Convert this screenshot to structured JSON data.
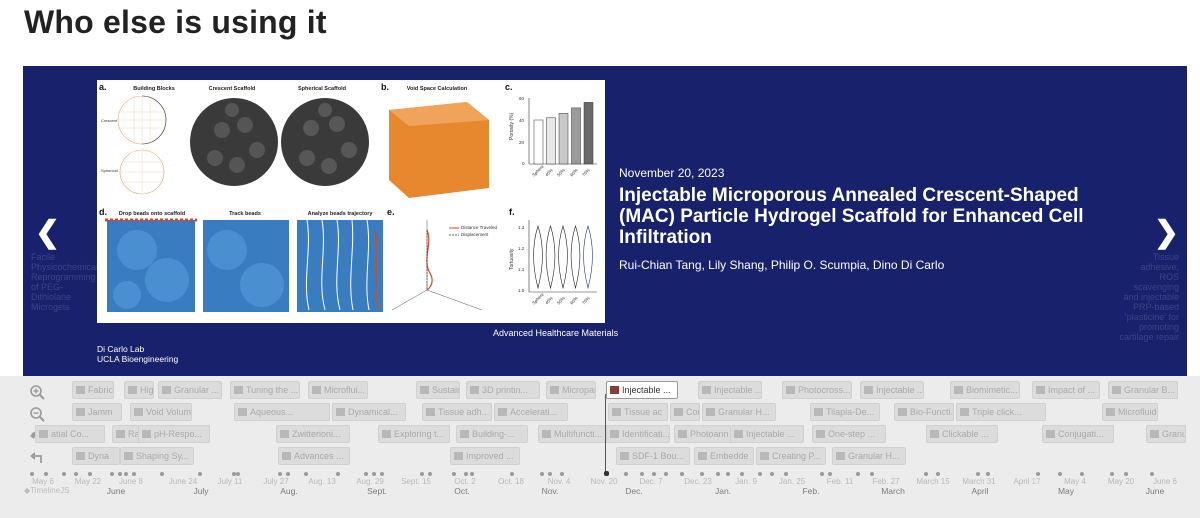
{
  "page": {
    "heading": "Who else is using it"
  },
  "slide": {
    "date": "November 20, 2023",
    "title": "Injectable Microporous Annealed Crescent-Shaped (MAC) Particle Hydrogel Scaffold for Enhanced Cell Infiltration",
    "authors": "Rui-Chian Tang, Lily Shang, Philip O. Scumpia, Dino Di Carlo",
    "journal": "Advanced Healthcare Materials",
    "credit_line1": "Di Carlo Lab",
    "credit_line2": "UCLA Bioengineering",
    "background_color": "#18216b"
  },
  "nav": {
    "prev_icon": "chevron-left-icon",
    "next_icon": "chevron-right-icon",
    "prev_caption": "Facile Physicochemical Reprogramming of PEG-Dithiolane Microgels",
    "next_caption": "Tissue adhesive, ROS scavenging and injectable PRP-based 'plasticine' for promoting cartilage repair"
  },
  "figure": {
    "panel_a": "a.",
    "panel_b": "b.",
    "panel_c": "c.",
    "panel_d": "d.",
    "panel_e": "e.",
    "panel_f": "f.",
    "building_blocks": "Building Blocks",
    "crescent_scaffold": "Crescent Scaffold",
    "spherical_scaffold": "Spherical Scaffold",
    "void_space": "Void Space Calculation",
    "crescent_label": "Crescent",
    "spherical_label": "Spherical",
    "drop_beads": "Drop beads onto scaffold",
    "track_beads": "Track beads",
    "analyze_beads": "Analyze beads trajectory",
    "porosity_axis": "Porosity (%)",
    "tortuosity_axis": "Tortuosity",
    "legend_distance": "Distance Traveled",
    "legend_displacement": "Displacement",
    "categories": [
      "Sphere",
      "40%",
      "50%",
      "60%",
      "70%"
    ],
    "porosity_ticks": [
      "60",
      "40",
      "20",
      "0"
    ],
    "porosity_values": [
      40,
      42,
      46,
      51,
      56
    ],
    "tortuosity_ticks": [
      "1.3",
      "1.2",
      "1.1",
      "1.0"
    ]
  },
  "timeline": {
    "zoom_in_icon": "zoom-in-icon",
    "zoom_out_icon": "zoom-out-icon",
    "back_icon": "back-arrow-icon",
    "undo_icon": "undo-arrow-icon",
    "brand": "◆TimelineJS",
    "active_marker": "Injectable ...",
    "markers_row1": [
      "Fabrica",
      "High-T",
      "Granular ...",
      "Tuning the ...",
      "Microflui...",
      "Sustaine",
      "3D printin...",
      "Microparti",
      "Injectable ...",
      "Injectable ...",
      "Photocross...",
      "Injectable ...",
      "Biomimetic...",
      "Impact of ...",
      "Granular B..."
    ],
    "markers_row2": [
      "Jamm",
      "Void Volum...",
      "Aqueous...",
      "Dynamical...",
      "Tissue adh...",
      "Accelerati...",
      "Tissue ac",
      "Condu",
      "Granular H...",
      "Tilapia-De...",
      "Bio-Functi...",
      "Triple click...",
      "Microfluidi..."
    ],
    "markers_row3": [
      "atial Co...",
      "Rapi",
      "pH-Respo...",
      "Zwitterioni...",
      "Exploring t...",
      "Building-...",
      "Multifuncti...",
      "Identificati...",
      "Photoann",
      "Injectable ...",
      "One-step ...",
      "Clickable ...",
      "Conjugati...",
      "Granu"
    ],
    "markers_row4": [
      "Dyna",
      "Shaping Sy...",
      "Advances ...",
      "Improved ...",
      "SDF-1 Bou...",
      "Embedde",
      "Creating P...",
      "Granular H..."
    ],
    "minor_labels": [
      "May 6",
      "May 22",
      "June 8",
      "June 24",
      "July 11",
      "July 27",
      "Aug. 13",
      "Aug. 29",
      "Sept. 15",
      "Oct. 2",
      "Oct. 18",
      "Nov. 4",
      "Nov. 20",
      "Dec. 7",
      "Dec. 23",
      "Jan. 9",
      "Jan. 25",
      "Feb. 11",
      "Feb. 27",
      "March 15",
      "March 31",
      "April 17",
      "May 4",
      "May 20",
      "June 6"
    ],
    "major_labels": [
      "June",
      "July",
      "Aug.",
      "Sept.",
      "Oct.",
      "Nov.",
      "Dec.",
      "Jan.",
      "Feb.",
      "March",
      "April",
      "May",
      "June"
    ]
  }
}
